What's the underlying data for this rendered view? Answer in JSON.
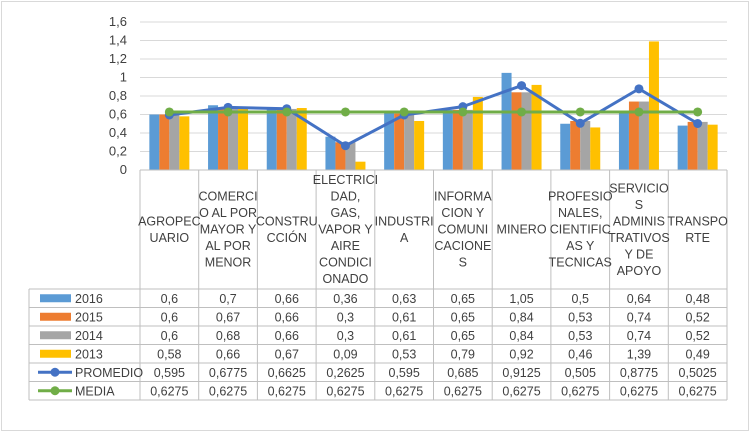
{
  "chart_data": {
    "type": "bar",
    "categories": [
      [
        "AGROPEC",
        "UARIO"
      ],
      [
        "COMERCI",
        "O AL POR",
        "MAYOR Y",
        "AL POR",
        "MENOR"
      ],
      [
        "CONSTRU",
        "CCIÓN"
      ],
      [
        "ELECTRICI",
        "DAD,",
        "GAS,",
        "VAPOR Y",
        "AIRE",
        "CONDICI",
        "ONADO"
      ],
      [
        "INDUSTRI",
        "A"
      ],
      [
        "INFORMA",
        "CION Y",
        "COMUNI",
        "CACIONE",
        "S"
      ],
      [
        "MINERO"
      ],
      [
        "PROFESIO",
        "NALES,",
        "CIENTIFIC",
        "AS Y",
        "TECNICAS"
      ],
      [
        "SERVICIO",
        "S",
        "ADMINIS",
        "TRATIVOS",
        "Y DE",
        "APOYO"
      ],
      [
        "TRANSPO",
        "RTE"
      ]
    ],
    "yticks": [
      "0",
      "0,2",
      "0,4",
      "0,6",
      "0,8",
      "1",
      "1,2",
      "1,4",
      "1,6"
    ],
    "ylim": [
      0,
      1.6
    ],
    "grid": true,
    "bar_series": [
      {
        "name": "2016",
        "color": "#5b9bd5",
        "values": [
          0.6,
          0.7,
          0.66,
          0.36,
          0.63,
          0.65,
          1.05,
          0.5,
          0.64,
          0.48
        ],
        "labels": [
          "0,6",
          "0,7",
          "0,66",
          "0,36",
          "0,63",
          "0,65",
          "1,05",
          "0,5",
          "0,64",
          "0,48"
        ]
      },
      {
        "name": "2015",
        "color": "#ed7d31",
        "values": [
          0.6,
          0.67,
          0.66,
          0.3,
          0.61,
          0.65,
          0.84,
          0.53,
          0.74,
          0.52
        ],
        "labels": [
          "0,6",
          "0,67",
          "0,66",
          "0,3",
          "0,61",
          "0,65",
          "0,84",
          "0,53",
          "0,74",
          "0,52"
        ]
      },
      {
        "name": "2014",
        "color": "#a5a5a5",
        "values": [
          0.6,
          0.68,
          0.66,
          0.3,
          0.61,
          0.65,
          0.84,
          0.53,
          0.74,
          0.52
        ],
        "labels": [
          "0,6",
          "0,68",
          "0,66",
          "0,3",
          "0,61",
          "0,65",
          "0,84",
          "0,53",
          "0,74",
          "0,52"
        ]
      },
      {
        "name": "2013",
        "color": "#ffc000",
        "values": [
          0.58,
          0.66,
          0.67,
          0.09,
          0.53,
          0.79,
          0.92,
          0.46,
          1.39,
          0.49
        ],
        "labels": [
          "0,58",
          "0,66",
          "0,67",
          "0,09",
          "0,53",
          "0,79",
          "0,92",
          "0,46",
          "1,39",
          "0,49"
        ]
      }
    ],
    "line_series": [
      {
        "name": "PROMEDIO",
        "color": "#4472c4",
        "values": [
          0.595,
          0.6775,
          0.6625,
          0.2625,
          0.595,
          0.685,
          0.9125,
          0.505,
          0.8775,
          0.5025
        ],
        "labels": [
          "0,595",
          "0,6775",
          "0,6625",
          "0,2625",
          "0,595",
          "0,685",
          "0,9125",
          "0,505",
          "0,8775",
          "0,5025"
        ]
      },
      {
        "name": "MEDIA",
        "color": "#70ad47",
        "values": [
          0.6275,
          0.6275,
          0.6275,
          0.6275,
          0.6275,
          0.6275,
          0.6275,
          0.6275,
          0.6275,
          0.6275
        ],
        "labels": [
          "0,6275",
          "0,6275",
          "0,6275",
          "0,6275",
          "0,6275",
          "0,6275",
          "0,6275",
          "0,6275",
          "0,6275",
          "0,6275"
        ]
      }
    ]
  }
}
